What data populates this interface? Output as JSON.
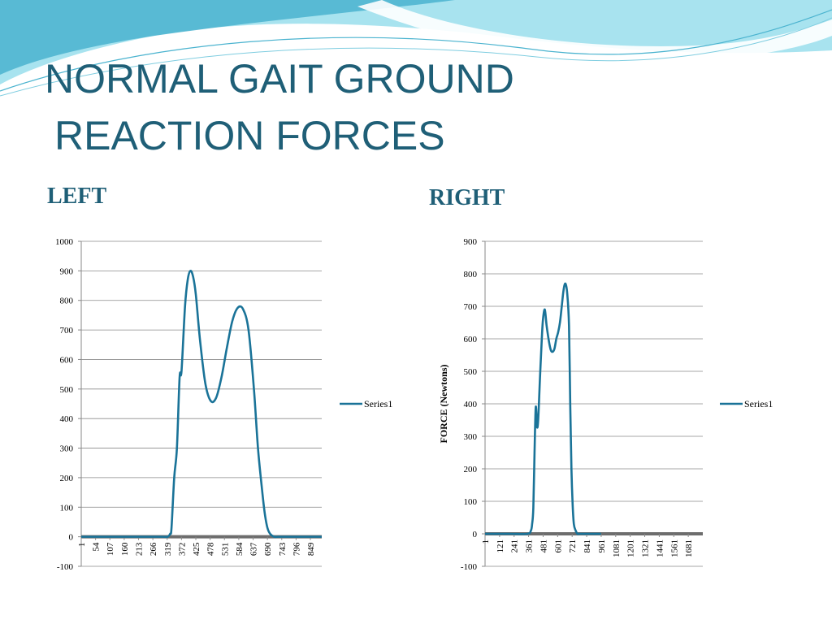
{
  "slide": {
    "title_line1": "NORMAL GAIT GROUND",
    "title_line2": "REACTION FORCES",
    "left_heading": "LEFT",
    "right_heading": "RIGHT"
  },
  "colors": {
    "title": "#1f5f77",
    "series": "#1a7398",
    "baseline": "#6d6d6d",
    "wave_light": "#a8e3ef",
    "wave_dark": "#4ab3cf"
  },
  "chart_data": [
    {
      "type": "line",
      "title": "",
      "xlabel": "",
      "ylabel": "",
      "ylim": [
        -100,
        1000
      ],
      "ytick_step": 100,
      "xlim": [
        1,
        891
      ],
      "grid": true,
      "legend": "right",
      "xtick_labels": [
        "1",
        "54",
        "107",
        "160",
        "213",
        "266",
        "319",
        "372",
        "425",
        "478",
        "531",
        "584",
        "637",
        "690",
        "743",
        "796",
        "849"
      ],
      "series": [
        {
          "name": "Series1",
          "x": [
            1,
            100,
            200,
            300,
            320,
            330,
            335,
            345,
            355,
            365,
            372,
            385,
            395,
            405,
            415,
            425,
            440,
            460,
            480,
            500,
            520,
            540,
            560,
            580,
            600,
            620,
            640,
            655,
            670,
            680,
            690,
            700,
            715,
            730,
            745,
            760,
            800,
            891
          ],
          "y": [
            0,
            0,
            0,
            0,
            0,
            10,
            30,
            200,
            300,
            540,
            560,
            780,
            870,
            900,
            880,
            820,
            670,
            520,
            460,
            470,
            540,
            640,
            730,
            775,
            770,
            700,
            500,
            300,
            160,
            80,
            30,
            10,
            0,
            0,
            0,
            0,
            0,
            0
          ]
        }
      ]
    },
    {
      "type": "line",
      "title": "",
      "xlabel": "",
      "ylabel": "FORCE (Newtons)",
      "ylim": [
        -100,
        900
      ],
      "ytick_step": 100,
      "xlim": [
        1,
        1801
      ],
      "grid": true,
      "legend": "right",
      "xtick_labels": [
        "1",
        "121",
        "241",
        "361",
        "481",
        "601",
        "721",
        "841",
        "961",
        "1081",
        "1201",
        "1321",
        "1441",
        "1561",
        "1681"
      ],
      "series": [
        {
          "name": "Series1",
          "x": [
            1,
            200,
            350,
            380,
            390,
            400,
            410,
            420,
            430,
            440,
            455,
            470,
            480,
            495,
            510,
            530,
            545,
            560,
            575,
            590,
            605,
            620,
            635,
            650,
            665,
            680,
            695,
            705,
            715,
            725,
            735,
            750,
            765,
            780,
            800,
            840,
            960
          ],
          "y": [
            0,
            0,
            0,
            10,
            30,
            80,
            250,
            390,
            330,
            350,
            480,
            600,
            660,
            690,
            640,
            590,
            565,
            560,
            570,
            600,
            620,
            650,
            700,
            750,
            770,
            740,
            640,
            400,
            200,
            90,
            30,
            10,
            0,
            0,
            0,
            0,
            0
          ]
        }
      ]
    }
  ]
}
